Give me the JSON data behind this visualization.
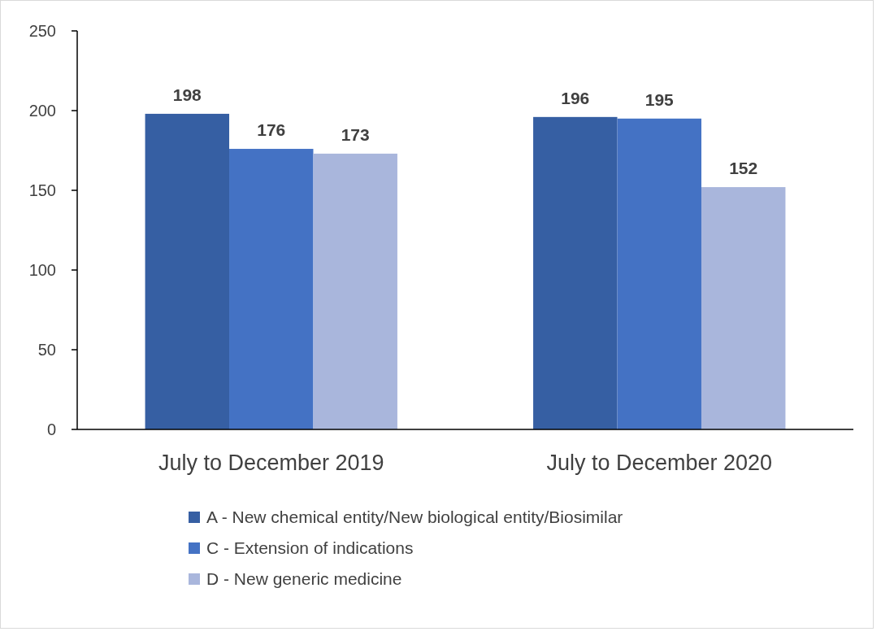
{
  "chart_data": {
    "type": "bar",
    "categories": [
      "July to December 2019",
      "July to December 2020"
    ],
    "series": [
      {
        "name": "A - New chemical entity/New biological entity/Biosimilar",
        "color": "#365fa3",
        "values": [
          198,
          196
        ]
      },
      {
        "name": "C - Extension of indications",
        "color": "#4472c4",
        "values": [
          176,
          195
        ]
      },
      {
        "name": "D - New generic medicine",
        "color": "#a9b6dc",
        "values": [
          173,
          152
        ]
      }
    ],
    "ylim": [
      0,
      250
    ],
    "yticks": [
      0,
      50,
      100,
      150,
      200,
      250
    ],
    "grid": false,
    "legend": "bottom",
    "data_labels": true
  }
}
